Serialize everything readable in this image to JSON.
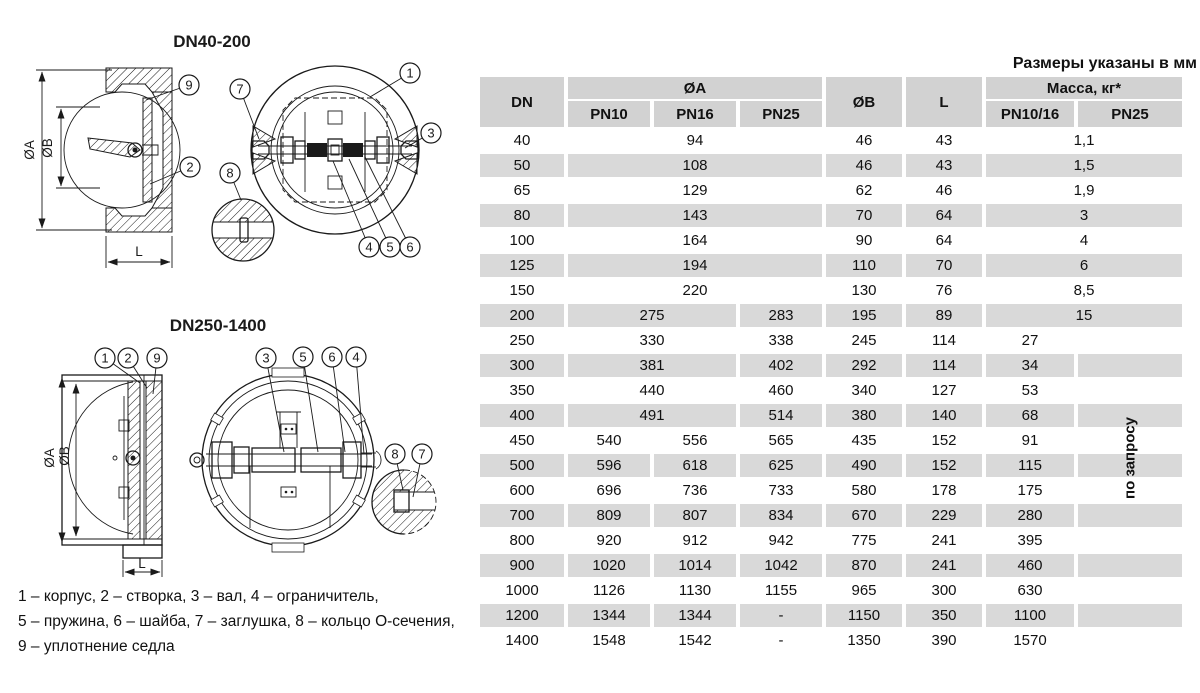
{
  "note": "Размеры указаны в мм",
  "drawings": {
    "d1": {
      "title": "DN40-200",
      "dim_a": "ØA",
      "dim_b": "ØB",
      "dim_l": "L",
      "balloons": {
        "b1": "1",
        "b2": "2",
        "b3": "3",
        "b4": "4",
        "b5": "5",
        "b6": "6",
        "b7": "7",
        "b8": "8",
        "b9": "9"
      }
    },
    "d2": {
      "title": "DN250-1400",
      "dim_a": "ØA",
      "dim_b": "ØB",
      "dim_l": "L",
      "balloons": {
        "b1": "1",
        "b2": "2",
        "b3": "3",
        "b4": "4",
        "b5": "5",
        "b6": "6",
        "b7": "7",
        "b8": "8",
        "b9": "9"
      }
    }
  },
  "legend": {
    "line1": "1 – корпус, 2 – створка, 3 – вал, 4 – ограничитель,",
    "line2": "5 – пружина, 6 – шайба, 7 – заглушка, 8 – кольцо О-сечения,",
    "line3": "9 – уплотнение седла"
  },
  "table": {
    "on_request": "по запросу",
    "headers": {
      "dn": "DN",
      "a": "ØA",
      "pn10": "PN10",
      "pn16": "PN16",
      "pn25": "PN25",
      "b": "ØB",
      "l": "L",
      "mass": "Масса, кг*",
      "m1016": "PN10/16",
      "mpn25": "PN25"
    },
    "rows": [
      {
        "dn": "40",
        "cells": [
          {
            "t": "94",
            "s": 3
          },
          {
            "t": "46"
          },
          {
            "t": "43"
          },
          {
            "t": "1,1",
            "s": 2
          }
        ]
      },
      {
        "dn": "50",
        "cells": [
          {
            "t": "108",
            "s": 3
          },
          {
            "t": "46"
          },
          {
            "t": "43"
          },
          {
            "t": "1,5",
            "s": 2
          }
        ]
      },
      {
        "dn": "65",
        "cells": [
          {
            "t": "129",
            "s": 3
          },
          {
            "t": "62"
          },
          {
            "t": "46"
          },
          {
            "t": "1,9",
            "s": 2
          }
        ]
      },
      {
        "dn": "80",
        "cells": [
          {
            "t": "143",
            "s": 3
          },
          {
            "t": "70"
          },
          {
            "t": "64"
          },
          {
            "t": "3",
            "s": 2
          }
        ]
      },
      {
        "dn": "100",
        "cells": [
          {
            "t": "164",
            "s": 3
          },
          {
            "t": "90"
          },
          {
            "t": "64"
          },
          {
            "t": "4",
            "s": 2
          }
        ]
      },
      {
        "dn": "125",
        "cells": [
          {
            "t": "194",
            "s": 3
          },
          {
            "t": "110"
          },
          {
            "t": "70"
          },
          {
            "t": "6",
            "s": 2
          }
        ]
      },
      {
        "dn": "150",
        "cells": [
          {
            "t": "220",
            "s": 3
          },
          {
            "t": "130"
          },
          {
            "t": "76"
          },
          {
            "t": "8,5",
            "s": 2
          }
        ]
      },
      {
        "dn": "200",
        "cells": [
          {
            "t": "275",
            "s": 2
          },
          {
            "t": "283"
          },
          {
            "t": "195"
          },
          {
            "t": "89"
          },
          {
            "t": "15",
            "s": 2
          }
        ]
      },
      {
        "dn": "250",
        "cells": [
          {
            "t": "330",
            "s": 2
          },
          {
            "t": "338"
          },
          {
            "t": "245"
          },
          {
            "t": "114"
          },
          {
            "t": "27"
          },
          {
            "t": ""
          }
        ]
      },
      {
        "dn": "300",
        "cells": [
          {
            "t": "381",
            "s": 2
          },
          {
            "t": "402"
          },
          {
            "t": "292"
          },
          {
            "t": "114"
          },
          {
            "t": "34"
          },
          {
            "t": ""
          }
        ]
      },
      {
        "dn": "350",
        "cells": [
          {
            "t": "440",
            "s": 2
          },
          {
            "t": "460"
          },
          {
            "t": "340"
          },
          {
            "t": "127"
          },
          {
            "t": "53"
          },
          {
            "t": ""
          }
        ]
      },
      {
        "dn": "400",
        "cells": [
          {
            "t": "491",
            "s": 2
          },
          {
            "t": "514"
          },
          {
            "t": "380"
          },
          {
            "t": "140"
          },
          {
            "t": "68"
          },
          {
            "t": ""
          }
        ]
      },
      {
        "dn": "450",
        "cells": [
          {
            "t": "540"
          },
          {
            "t": "556"
          },
          {
            "t": "565"
          },
          {
            "t": "435"
          },
          {
            "t": "152"
          },
          {
            "t": "91"
          },
          {
            "t": ""
          }
        ]
      },
      {
        "dn": "500",
        "cells": [
          {
            "t": "596"
          },
          {
            "t": "618"
          },
          {
            "t": "625"
          },
          {
            "t": "490"
          },
          {
            "t": "152"
          },
          {
            "t": "115"
          },
          {
            "t": ""
          }
        ]
      },
      {
        "dn": "600",
        "cells": [
          {
            "t": "696"
          },
          {
            "t": "736"
          },
          {
            "t": "733"
          },
          {
            "t": "580"
          },
          {
            "t": "178"
          },
          {
            "t": "175"
          },
          {
            "t": ""
          }
        ]
      },
      {
        "dn": "700",
        "cells": [
          {
            "t": "809"
          },
          {
            "t": "807"
          },
          {
            "t": "834"
          },
          {
            "t": "670"
          },
          {
            "t": "229"
          },
          {
            "t": "280"
          },
          {
            "t": ""
          }
        ]
      },
      {
        "dn": "800",
        "cells": [
          {
            "t": "920"
          },
          {
            "t": "912"
          },
          {
            "t": "942"
          },
          {
            "t": "775"
          },
          {
            "t": "241"
          },
          {
            "t": "395"
          },
          {
            "t": ""
          }
        ]
      },
      {
        "dn": "900",
        "cells": [
          {
            "t": "1020"
          },
          {
            "t": "1014"
          },
          {
            "t": "1042"
          },
          {
            "t": "870"
          },
          {
            "t": "241"
          },
          {
            "t": "460"
          },
          {
            "t": ""
          }
        ]
      },
      {
        "dn": "1000",
        "cells": [
          {
            "t": "1126"
          },
          {
            "t": "1130"
          },
          {
            "t": "1155"
          },
          {
            "t": "965"
          },
          {
            "t": "300"
          },
          {
            "t": "630"
          },
          {
            "t": ""
          }
        ]
      },
      {
        "dn": "1200",
        "cells": [
          {
            "t": "1344"
          },
          {
            "t": "1344"
          },
          {
            "t": "-"
          },
          {
            "t": "1150"
          },
          {
            "t": "350"
          },
          {
            "t": "1100"
          },
          {
            "t": ""
          }
        ]
      },
      {
        "dn": "1400",
        "cells": [
          {
            "t": "1548"
          },
          {
            "t": "1542"
          },
          {
            "t": "-"
          },
          {
            "t": "1350"
          },
          {
            "t": "390"
          },
          {
            "t": "1570"
          },
          {
            "t": ""
          }
        ]
      }
    ]
  }
}
